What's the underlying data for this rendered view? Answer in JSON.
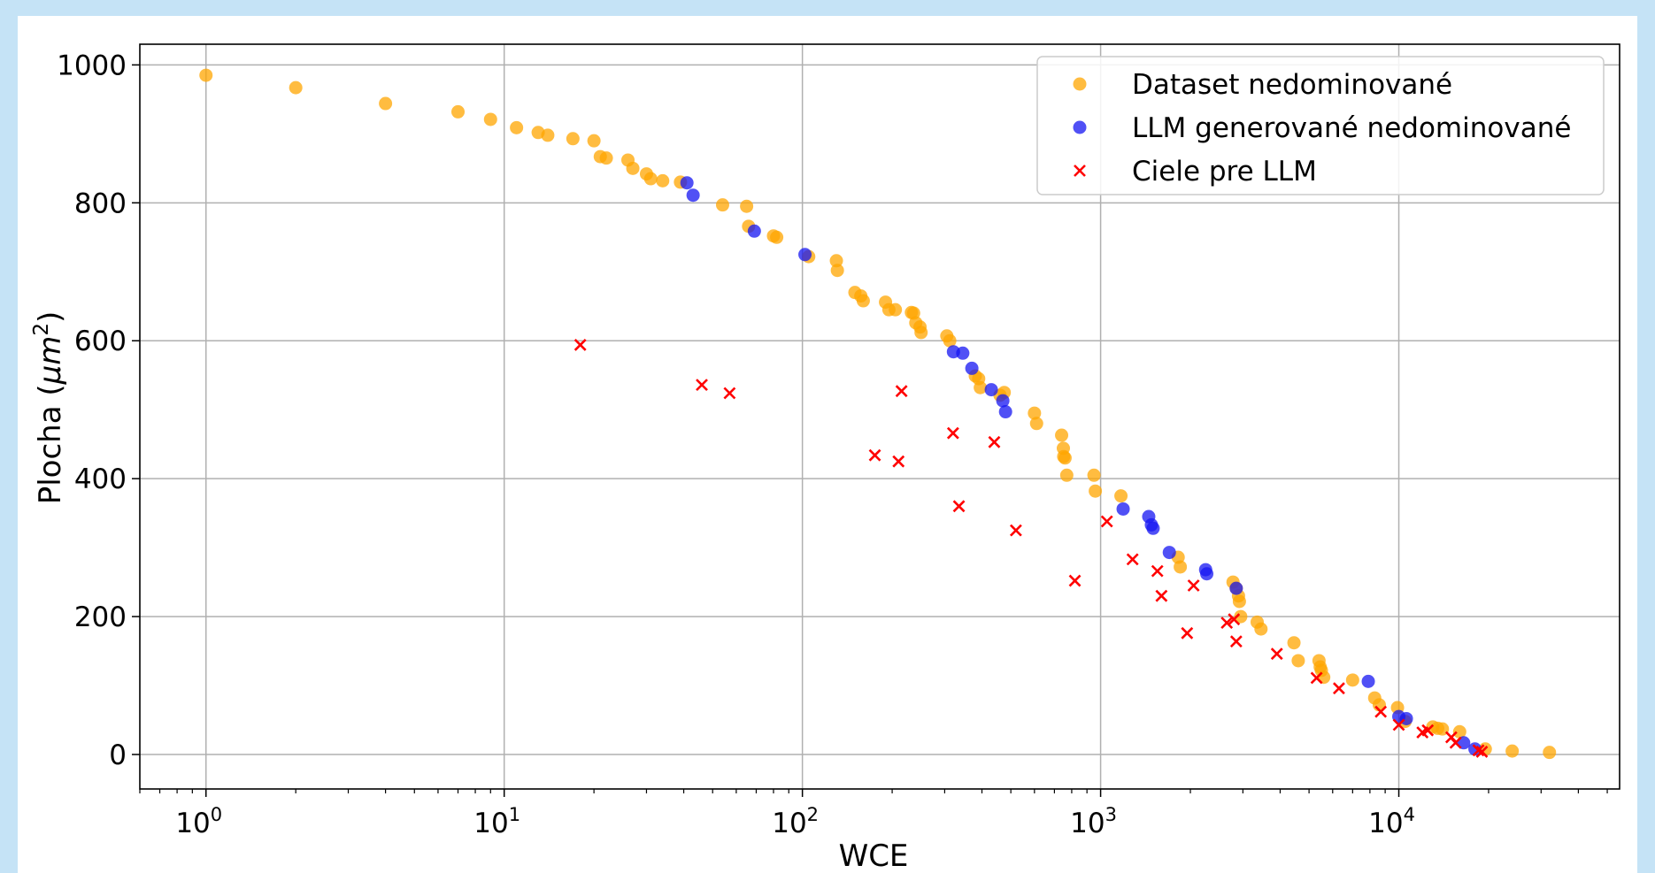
{
  "chart_data": {
    "type": "scatter",
    "x_scale": "log",
    "xlabel": "WCE",
    "ylabel": "Plocha (μm2)",
    "xlim": [
      0.6,
      55000
    ],
    "ylim": [
      -50,
      1030
    ],
    "x_ticks": [
      {
        "value": 1,
        "base": "10",
        "exp": "0"
      },
      {
        "value": 10,
        "base": "10",
        "exp": "1"
      },
      {
        "value": 100,
        "base": "10",
        "exp": "2"
      },
      {
        "value": 1000,
        "base": "10",
        "exp": "3"
      },
      {
        "value": 10000,
        "base": "10",
        "exp": "4"
      }
    ],
    "y_ticks": [
      0,
      200,
      400,
      600,
      800,
      1000
    ],
    "grid": true,
    "legend_position": "top-right",
    "series": [
      {
        "name": "Dataset nedominované",
        "marker": "circle",
        "color": "#ffa500",
        "points": [
          [
            1,
            985
          ],
          [
            2,
            967
          ],
          [
            4,
            944
          ],
          [
            7,
            932
          ],
          [
            9,
            921
          ],
          [
            11,
            909
          ],
          [
            13,
            902
          ],
          [
            14,
            898
          ],
          [
            17,
            893
          ],
          [
            20,
            890
          ],
          [
            21,
            867
          ],
          [
            22,
            865
          ],
          [
            26,
            862
          ],
          [
            27,
            850
          ],
          [
            30,
            842
          ],
          [
            31,
            835
          ],
          [
            34,
            832
          ],
          [
            39,
            830
          ],
          [
            54,
            797
          ],
          [
            65,
            795
          ],
          [
            66,
            766
          ],
          [
            80,
            752
          ],
          [
            82,
            750
          ],
          [
            105,
            722
          ],
          [
            130,
            716
          ],
          [
            131,
            702
          ],
          [
            150,
            670
          ],
          [
            157,
            665
          ],
          [
            160,
            658
          ],
          [
            190,
            656
          ],
          [
            195,
            645
          ],
          [
            205,
            645
          ],
          [
            232,
            641
          ],
          [
            236,
            640
          ],
          [
            240,
            626
          ],
          [
            248,
            620
          ],
          [
            250,
            612
          ],
          [
            305,
            607
          ],
          [
            312,
            600
          ],
          [
            380,
            549
          ],
          [
            390,
            545
          ],
          [
            395,
            532
          ],
          [
            460,
            521
          ],
          [
            475,
            525
          ],
          [
            600,
            495
          ],
          [
            610,
            480
          ],
          [
            740,
            463
          ],
          [
            750,
            444
          ],
          [
            752,
            432
          ],
          [
            760,
            430
          ],
          [
            770,
            405
          ],
          [
            950,
            405
          ],
          [
            960,
            382
          ],
          [
            1170,
            375
          ],
          [
            1820,
            286
          ],
          [
            1850,
            272
          ],
          [
            2780,
            250
          ],
          [
            2850,
            241
          ],
          [
            2900,
            230
          ],
          [
            2920,
            222
          ],
          [
            2950,
            200
          ],
          [
            3350,
            192
          ],
          [
            3450,
            182
          ],
          [
            4450,
            162
          ],
          [
            4600,
            136
          ],
          [
            5400,
            136
          ],
          [
            5450,
            127
          ],
          [
            5500,
            122
          ],
          [
            5600,
            112
          ],
          [
            7000,
            108
          ],
          [
            8300,
            82
          ],
          [
            8600,
            72
          ],
          [
            9900,
            68
          ],
          [
            10500,
            48
          ],
          [
            13000,
            40
          ],
          [
            13500,
            38
          ],
          [
            14000,
            37
          ],
          [
            16000,
            33
          ],
          [
            19500,
            8
          ],
          [
            24000,
            5
          ],
          [
            32000,
            3
          ]
        ]
      },
      {
        "name": "LLM generované nedominované",
        "marker": "circle",
        "color": "#1515f2",
        "points": [
          [
            41,
            829
          ],
          [
            43,
            811
          ],
          [
            69,
            759
          ],
          [
            102,
            725
          ],
          [
            321,
            584
          ],
          [
            345,
            582
          ],
          [
            370,
            560
          ],
          [
            430,
            529
          ],
          [
            470,
            513
          ],
          [
            480,
            497
          ],
          [
            1190,
            356
          ],
          [
            1450,
            345
          ],
          [
            1480,
            333
          ],
          [
            1500,
            328
          ],
          [
            1700,
            293
          ],
          [
            2250,
            268
          ],
          [
            2270,
            262
          ],
          [
            2850,
            241
          ],
          [
            7900,
            106
          ],
          [
            10000,
            55
          ],
          [
            10600,
            52
          ],
          [
            16500,
            17
          ],
          [
            18000,
            8
          ]
        ]
      },
      {
        "name": "Ciele pre LLM",
        "marker": "x",
        "color": "#ff0000",
        "points": [
          [
            18,
            594
          ],
          [
            46,
            536
          ],
          [
            57,
            524
          ],
          [
            175,
            434
          ],
          [
            210,
            425
          ],
          [
            215,
            527
          ],
          [
            320,
            466
          ],
          [
            335,
            360
          ],
          [
            440,
            453
          ],
          [
            520,
            325
          ],
          [
            820,
            252
          ],
          [
            1050,
            338
          ],
          [
            1280,
            283
          ],
          [
            1550,
            266
          ],
          [
            1600,
            230
          ],
          [
            1950,
            176
          ],
          [
            2050,
            245
          ],
          [
            2650,
            191
          ],
          [
            2800,
            196
          ],
          [
            2850,
            164
          ],
          [
            3900,
            146
          ],
          [
            5300,
            111
          ],
          [
            6300,
            96
          ],
          [
            8700,
            62
          ],
          [
            10000,
            43
          ],
          [
            12000,
            32
          ],
          [
            12500,
            35
          ],
          [
            15000,
            25
          ],
          [
            15500,
            17
          ],
          [
            18500,
            6
          ],
          [
            19000,
            4
          ]
        ]
      }
    ]
  }
}
